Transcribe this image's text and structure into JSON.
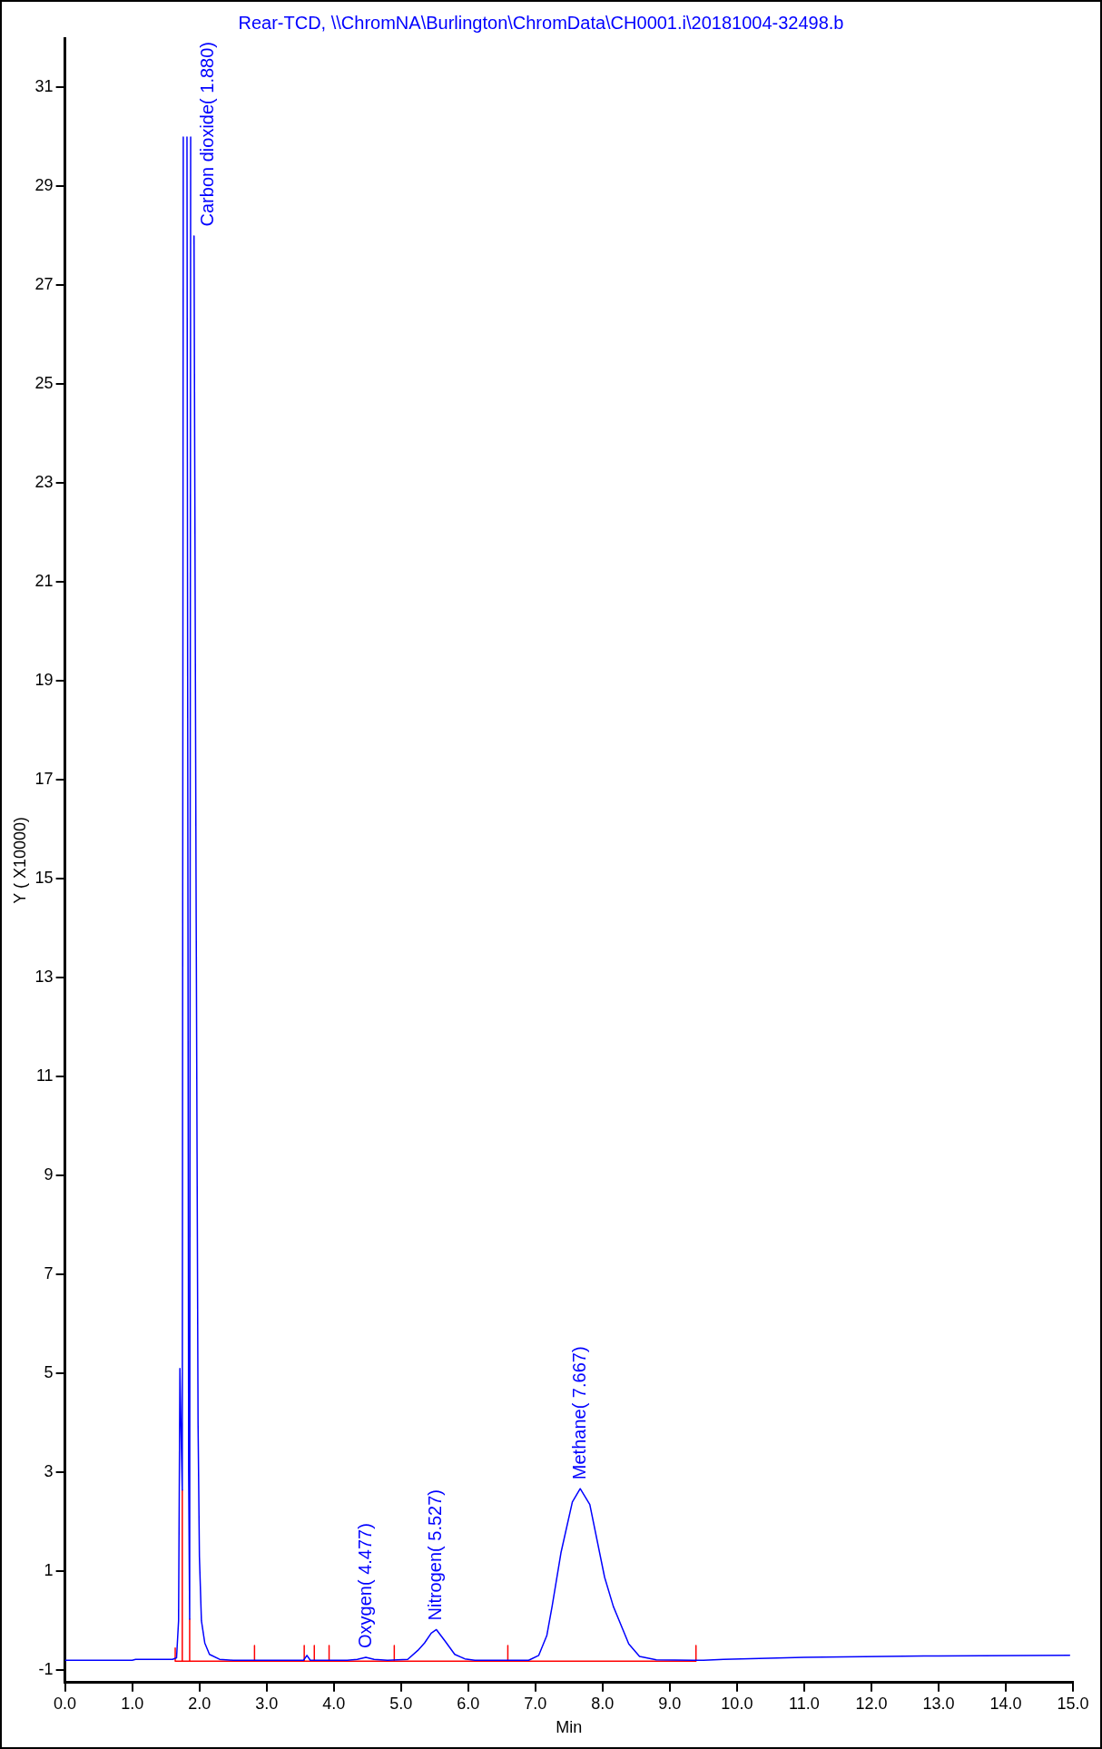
{
  "chart_data": {
    "type": "line",
    "title": "Rear-TCD, \\\\ChromNA\\Burlington\\ChromData\\CH0001.i\\20181004-32498.b",
    "xlabel": "Min",
    "ylabel": "Y ( X10000)",
    "xlim": [
      0,
      15
    ],
    "ylim": [
      -1.25,
      32
    ],
    "xticks": [
      {
        "value": 0,
        "label": "0.0"
      },
      {
        "value": 1,
        "label": "1.0"
      },
      {
        "value": 2,
        "label": "2.0"
      },
      {
        "value": 3,
        "label": "3.0"
      },
      {
        "value": 4,
        "label": "4.0"
      },
      {
        "value": 5,
        "label": "5.0"
      },
      {
        "value": 6,
        "label": "6.0"
      },
      {
        "value": 7,
        "label": "7.0"
      },
      {
        "value": 8,
        "label": "8.0"
      },
      {
        "value": 9,
        "label": "9.0"
      },
      {
        "value": 10,
        "label": "10.0"
      },
      {
        "value": 11,
        "label": "11.0"
      },
      {
        "value": 12,
        "label": "12.0"
      },
      {
        "value": 13,
        "label": "13.0"
      },
      {
        "value": 14,
        "label": "14.0"
      },
      {
        "value": 15,
        "label": "15.0"
      }
    ],
    "yticks": [
      -1,
      1,
      3,
      5,
      7,
      9,
      11,
      13,
      15,
      17,
      19,
      21,
      23,
      25,
      27,
      29,
      31
    ],
    "grid": false,
    "marker": "none",
    "line_style": "solid",
    "series": [
      {
        "type": "line",
        "color": "#0000ff",
        "x": [
          0,
          1.0,
          1.05,
          1.6,
          1.66,
          1.69,
          1.71,
          1.725,
          1.745,
          1.76,
          1.775,
          1.8,
          1.815,
          1.84,
          1.855,
          1.87,
          1.885,
          1.905,
          1.92,
          1.95,
          1.98,
          2.0,
          2.03,
          2.08,
          2.15,
          2.3,
          2.5,
          3.55,
          3.6,
          3.65,
          4.2,
          4.35,
          4.477,
          4.6,
          4.8,
          5.1,
          5.25,
          5.35,
          5.45,
          5.527,
          5.65,
          5.8,
          5.95,
          6.1,
          6.9,
          7.05,
          7.17,
          7.25,
          7.38,
          7.55,
          7.667,
          7.81,
          8.03,
          8.16,
          8.39,
          8.55,
          8.8,
          9.5,
          9.8,
          11,
          13,
          14.95
        ],
        "values": [
          -0.8,
          -0.8,
          -0.78,
          -0.78,
          -0.75,
          0,
          5.1,
          4,
          2.64,
          30,
          null,
          null,
          30,
          3,
          0.03,
          30,
          null,
          null,
          28,
          15,
          4,
          1.3,
          0,
          -0.45,
          -0.68,
          -0.78,
          -0.8,
          -0.8,
          -0.7,
          -0.8,
          -0.8,
          -0.78,
          -0.74,
          -0.78,
          -0.8,
          -0.78,
          -0.6,
          -0.45,
          -0.25,
          -0.18,
          -0.4,
          -0.68,
          -0.77,
          -0.8,
          -0.8,
          -0.7,
          -0.3,
          0.3,
          1.37,
          2.4,
          2.67,
          2.35,
          0.88,
          0.29,
          -0.47,
          -0.72,
          -0.79,
          -0.8,
          -0.78,
          -0.74,
          -0.71,
          -0.7
        ]
      },
      {
        "type": "line",
        "color": "#ff0000",
        "x": [
          1.64,
          1.64,
          1.64,
          1.745,
          1.745,
          1.745,
          1.855,
          1.855,
          1.855,
          2.82,
          2.82,
          2.82,
          3.56,
          3.56,
          3.56,
          3.71,
          3.71,
          3.71,
          3.93,
          3.93,
          3.93,
          4.9,
          4.9,
          4.9,
          6.59,
          6.59,
          6.59,
          9.39,
          9.39,
          9.39
        ],
        "values": [
          -0.82,
          -0.55,
          -0.82,
          -0.82,
          2.64,
          -0.82,
          -0.82,
          0.03,
          -0.82,
          -0.82,
          -0.5,
          -0.82,
          -0.82,
          -0.5,
          -0.82,
          -0.82,
          -0.5,
          -0.82,
          -0.82,
          -0.5,
          -0.82,
          -0.82,
          -0.5,
          -0.82,
          -0.82,
          -0.5,
          -0.82,
          -0.82,
          -0.5,
          -0.82
        ]
      }
    ],
    "annotations": [
      "Carbon dioxide( 1.880)",
      {
        "text": "Oxygen( 4.477)",
        "x": 4.477,
        "y": -0.74
      },
      {
        "text": "Nitrogen( 5.527)",
        "x": 5.527,
        "y": -0.18
      },
      {
        "text": "Methane( 7.667)",
        "x": 7.667,
        "y": 2.67
      }
    ]
  }
}
